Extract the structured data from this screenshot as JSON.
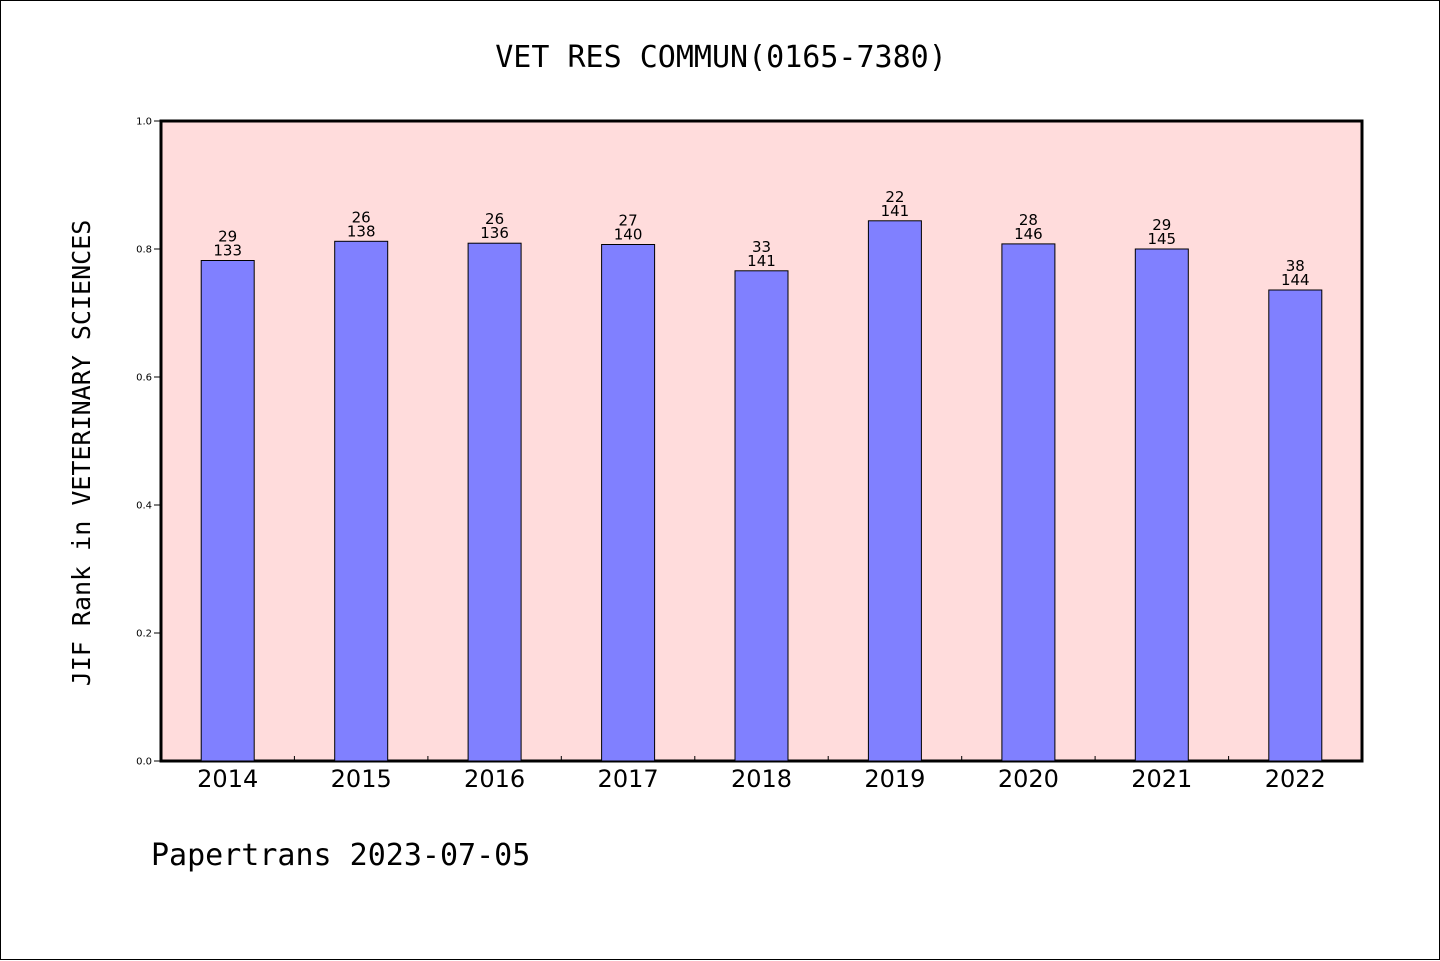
{
  "chart_data": {
    "type": "bar",
    "title": "VET RES COMMUN(0165-7380)",
    "xlabel": "",
    "ylabel": "JIF Rank in VETERINARY SCIENCES",
    "ylim": [
      0.0,
      1.0
    ],
    "yticks": [
      "0.0",
      "0.2",
      "0.4",
      "0.6",
      "0.8",
      "1.0"
    ],
    "categories": [
      "2014",
      "2015",
      "2016",
      "2017",
      "2018",
      "2019",
      "2020",
      "2021",
      "2022"
    ],
    "values": [
      0.782,
      0.812,
      0.809,
      0.807,
      0.766,
      0.844,
      0.808,
      0.8,
      0.736
    ],
    "ranks": [
      "29",
      "26",
      "26",
      "27",
      "33",
      "22",
      "28",
      "29",
      "38"
    ],
    "totals": [
      "133",
      "138",
      "136",
      "140",
      "141",
      "141",
      "146",
      "145",
      "144"
    ],
    "grid": false,
    "colors": {
      "bar": "#8080ff",
      "plot_background": "#ffdcdc",
      "axes": "#000000"
    }
  },
  "footer": {
    "text": "Papertrans 2023-07-05"
  }
}
